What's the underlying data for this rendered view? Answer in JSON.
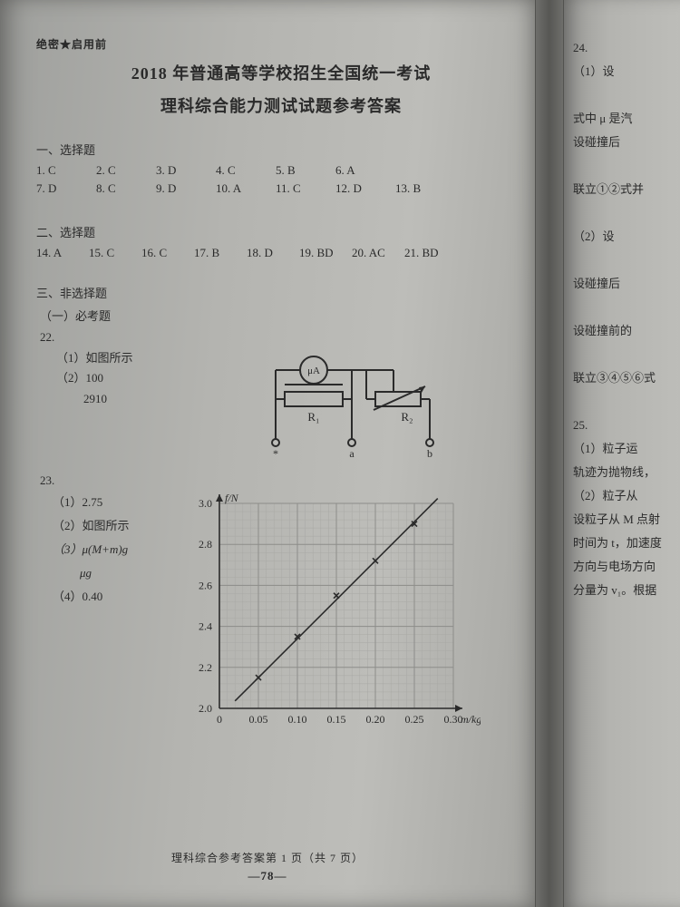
{
  "left": {
    "classification": "绝密★启用前",
    "title_line1": "2018 年普通高等学校招生全国统一考试",
    "title_line2": "理科综合能力测试试题参考答案",
    "section1_heading": "一、选择题",
    "choice_row1": [
      {
        "q": "1.",
        "a": "C"
      },
      {
        "q": "2.",
        "a": "C"
      },
      {
        "q": "3.",
        "a": "D"
      },
      {
        "q": "4.",
        "a": "C"
      },
      {
        "q": "5.",
        "a": "B"
      },
      {
        "q": "6.",
        "a": "A"
      }
    ],
    "choice_row2": [
      {
        "q": "7.",
        "a": "D"
      },
      {
        "q": "8.",
        "a": "C"
      },
      {
        "q": "9.",
        "a": "D"
      },
      {
        "q": "10.",
        "a": "A"
      },
      {
        "q": "11.",
        "a": "C"
      },
      {
        "q": "12.",
        "a": "D"
      },
      {
        "q": "13.",
        "a": "B"
      }
    ],
    "section2_heading": "二、选择题",
    "choice_row3": [
      {
        "q": "14.",
        "a": "A"
      },
      {
        "q": "15.",
        "a": "C"
      },
      {
        "q": "16.",
        "a": "C"
      },
      {
        "q": "17.",
        "a": "B"
      },
      {
        "q": "18.",
        "a": "D"
      },
      {
        "q": "19.",
        "a": "BD"
      },
      {
        "q": "20.",
        "a": "AC"
      },
      {
        "q": "21.",
        "a": "BD"
      }
    ],
    "section3_heading": "三、非选择题",
    "required_heading": "（一）必考题",
    "q22": {
      "num": "22.",
      "a1": "（1）如图所示",
      "a2a": "（2）100",
      "a2b": "2910",
      "circuit": {
        "meter_label": "μA",
        "r1_label": "R₁",
        "r2_label": "R₂",
        "terminals": [
          "*",
          "a",
          "b"
        ],
        "stroke": "#2a2a2a",
        "stroke_width": 2
      }
    },
    "q23": {
      "num": "23.",
      "a1": "（1）2.75",
      "a2": "（2）如图所示",
      "a3a": "（3）μ(M+m)g",
      "a3b": "μg",
      "a4": "（4）0.40",
      "chart": {
        "type": "scatter+line",
        "xlabel": "m/kg",
        "ylabel": "f/N",
        "xlim": [
          0,
          0.3
        ],
        "ylim": [
          2.0,
          3.0
        ],
        "xticks": [
          0,
          0.05,
          0.1,
          0.15,
          0.2,
          0.25,
          0.3
        ],
        "yticks": [
          2.0,
          2.2,
          2.4,
          2.6,
          2.8,
          3.0
        ],
        "minor_x_step": 0.01,
        "minor_y_step": 0.04,
        "grid_color": "#8d8d8a",
        "minor_grid_color": "#a9a9a5",
        "axis_color": "#2a2a2a",
        "axis_width": 1.6,
        "line_color": "#2a2a2a",
        "line_width": 1.6,
        "marker": "x",
        "marker_size": 6,
        "marker_color": "#2a2a2a",
        "label_fontsize": 12,
        "points": [
          {
            "x": 0.05,
            "y": 2.15
          },
          {
            "x": 0.1,
            "y": 2.35
          },
          {
            "x": 0.15,
            "y": 2.55
          },
          {
            "x": 0.2,
            "y": 2.72
          },
          {
            "x": 0.25,
            "y": 2.9
          }
        ],
        "fit": {
          "slope": 3.8,
          "intercept": 1.96
        }
      }
    },
    "footer_line1": "理科综合参考答案第 1 页（共 7 页）",
    "footer_pageno": "—78—"
  },
  "right": {
    "items": [
      "24.",
      "（1）设",
      "",
      "式中 μ 是汽",
      "设碰撞后",
      "",
      "联立①②式并",
      "",
      "（2）设",
      "",
      "设碰撞后",
      "",
      "设碰撞前的",
      "",
      "联立③④⑤⑥式",
      "",
      "25.",
      "（1）粒子运",
      "轨迹为抛物线，",
      "（2）粒子从",
      "设粒子从 M 点射",
      "时间为 t，加速度",
      "方向与电场方向",
      "分量为 v₁。根据"
    ]
  }
}
